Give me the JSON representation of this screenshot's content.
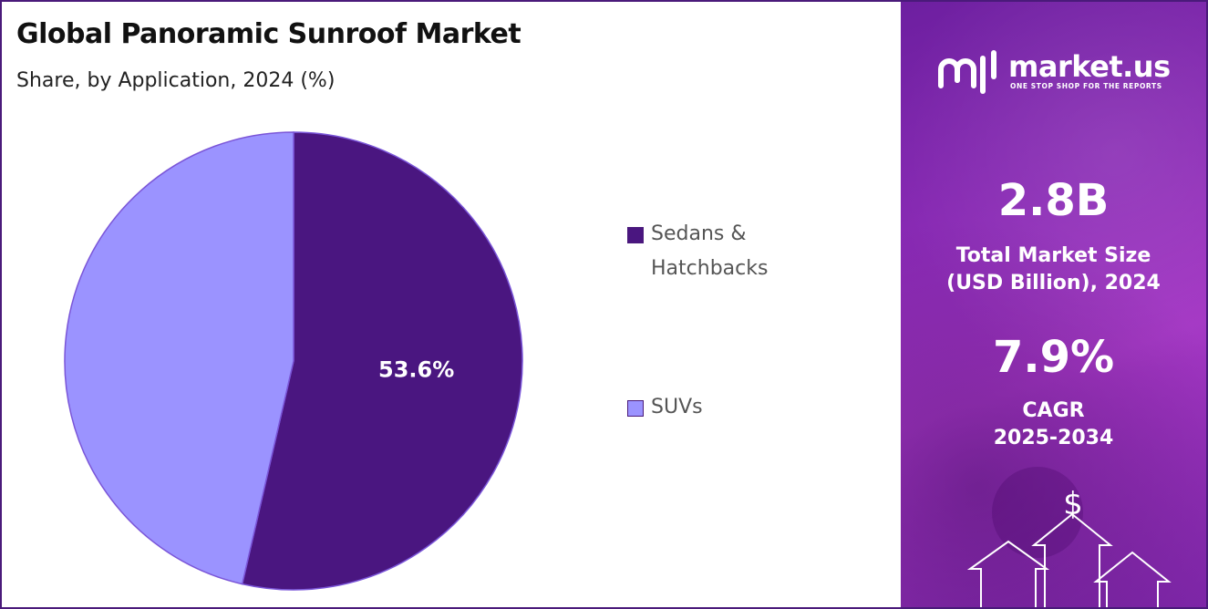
{
  "title": "Global Panoramic Sunroof Market",
  "subtitle": "Share, by Application, 2024 (%)",
  "chart_data": {
    "type": "pie",
    "categories": [
      "Sedans & Hatchbacks",
      "SUVs"
    ],
    "values": [
      53.6,
      46.4
    ],
    "data_labels": [
      "53.6%",
      ""
    ],
    "legend_lines": [
      [
        "Sedans &",
        "Hatchbacks"
      ],
      [
        "SUVs"
      ]
    ],
    "colors": [
      "#4a1680",
      "#9b93ff"
    ],
    "legend": "right"
  },
  "sidebar": {
    "brand": "market.us",
    "tagline": "ONE STOP SHOP FOR THE REPORTS",
    "stats": [
      {
        "value": "2.8B",
        "label_lines": [
          "Total Market Size",
          "(USD Billion), 2024"
        ]
      },
      {
        "value": "7.9%",
        "label_lines": [
          "CAGR",
          "2025-2034"
        ]
      }
    ],
    "dollar_symbol": "$",
    "colors": {
      "gradient_start": "#6d1fa0",
      "gradient_end": "#a437c4"
    }
  }
}
